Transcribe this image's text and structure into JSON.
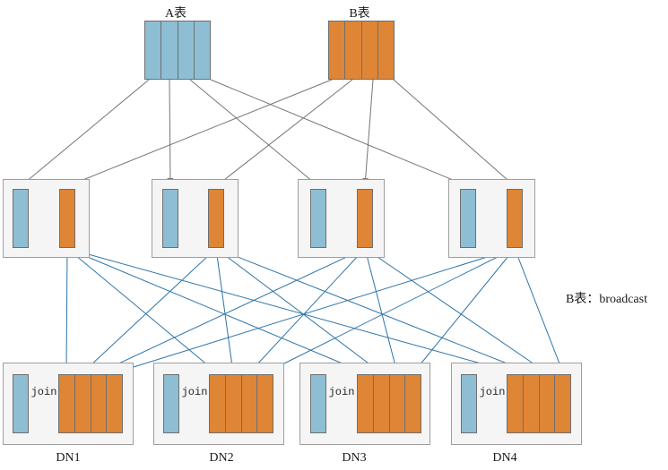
{
  "diagram": {
    "table_a": {
      "label": "A表",
      "partitions": 4
    },
    "table_b": {
      "label": "B表",
      "partitions": 4
    },
    "annotation": "B表：broadcast",
    "join_label": "join",
    "datanodes": [
      {
        "label": "DN1"
      },
      {
        "label": "DN2"
      },
      {
        "label": "DN3"
      },
      {
        "label": "DN4"
      }
    ],
    "colors": {
      "table_a_fill": "#8dbed4",
      "table_b_fill": "#de8536",
      "bar_border": "#6f6f6f",
      "box_fill": "#f5f5f5",
      "box_border": "#9e9e9e",
      "distribute_arrow": "#757575",
      "broadcast_arrow": "#2e74a8",
      "join_arrow": "#4d4d4d",
      "text": "#1a1a1a"
    }
  }
}
